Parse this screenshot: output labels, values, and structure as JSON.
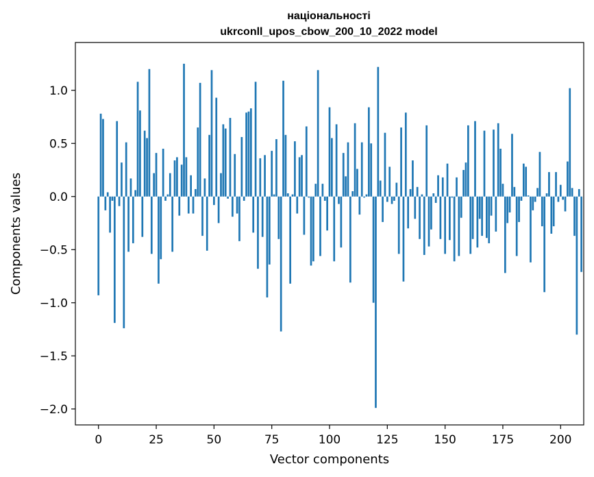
{
  "chart_data": {
    "type": "bar",
    "title": "національності",
    "subtitle": "ukrconll_upos_cbow_200_10_2022 model",
    "xlabel": "Vector components",
    "ylabel": "Components values",
    "xlim": [
      -10,
      210
    ],
    "ylim": [
      -2.15,
      1.45
    ],
    "xticks": [
      0,
      25,
      50,
      75,
      100,
      125,
      150,
      175,
      200
    ],
    "yticks": [
      -2.0,
      -1.5,
      -1.0,
      -0.5,
      0.0,
      0.5,
      1.0
    ],
    "ytick_labels": [
      "−2.0",
      "−1.5",
      "−1.0",
      "−0.5",
      "0.0",
      "0.5",
      "1.0"
    ],
    "grid": false,
    "bar_color": "#1f77b4",
    "values": [
      -0.93,
      0.78,
      0.73,
      -0.13,
      0.04,
      -0.34,
      -0.04,
      -1.19,
      0.71,
      -0.09,
      0.32,
      -1.24,
      0.51,
      -0.52,
      0.17,
      -0.44,
      0.06,
      1.08,
      0.81,
      -0.38,
      0.62,
      0.55,
      1.2,
      -0.54,
      0.22,
      0.41,
      -0.82,
      -0.59,
      0.45,
      -0.04,
      0.02,
      0.22,
      -0.52,
      0.34,
      0.37,
      -0.18,
      0.3,
      1.25,
      0.37,
      -0.16,
      0.2,
      -0.16,
      0.07,
      0.65,
      1.07,
      -0.37,
      0.17,
      -0.51,
      0.58,
      1.19,
      -0.08,
      0.93,
      -0.25,
      0.22,
      0.68,
      0.64,
      -0.02,
      0.74,
      -0.19,
      0.4,
      -0.16,
      -0.42,
      0.56,
      -0.04,
      0.79,
      0.8,
      0.83,
      -0.34,
      1.08,
      -0.68,
      0.36,
      -0.38,
      0.39,
      -0.95,
      -0.64,
      0.43,
      0.02,
      0.54,
      -0.4,
      -1.27,
      1.09,
      0.58,
      0.03,
      -0.82,
      0.02,
      0.52,
      -0.16,
      0.37,
      0.39,
      -0.36,
      0.66,
      -0.01,
      -0.65,
      -0.61,
      0.12,
      1.19,
      -0.56,
      0.12,
      -0.04,
      -0.32,
      0.84,
      0.55,
      -0.61,
      0.68,
      -0.07,
      -0.48,
      0.41,
      0.19,
      0.51,
      -0.81,
      0.05,
      0.69,
      0.26,
      -0.17,
      0.51,
      -0.01,
      0.02,
      0.84,
      0.5,
      -1.0,
      -1.99,
      1.22,
      0.15,
      -0.24,
      0.6,
      -0.05,
      0.28,
      -0.07,
      -0.04,
      0.13,
      -0.54,
      0.65,
      -0.8,
      0.79,
      -0.3,
      0.07,
      0.34,
      -0.21,
      0.09,
      -0.4,
      0.02,
      -0.55,
      0.67,
      -0.47,
      -0.31,
      0.03,
      -0.06,
      0.2,
      -0.4,
      0.18,
      -0.54,
      0.31,
      -0.41,
      -0.01,
      -0.61,
      0.18,
      -0.56,
      -0.2,
      0.25,
      0.32,
      0.67,
      -0.54,
      -0.4,
      0.71,
      -0.48,
      -0.21,
      -0.37,
      0.62,
      -0.39,
      -0.44,
      -0.18,
      0.63,
      -0.33,
      0.69,
      0.45,
      0.12,
      -0.72,
      -0.25,
      -0.15,
      0.59,
      0.09,
      -0.56,
      -0.24,
      -0.04,
      0.31,
      0.28,
      0.01,
      -0.62,
      -0.13,
      -0.05,
      0.08,
      0.42,
      -0.28,
      -0.9,
      0.03,
      0.23,
      -0.35,
      -0.28,
      0.23,
      -0.05,
      0.11,
      -0.03,
      -0.14,
      0.33,
      1.02,
      0.08,
      -0.37,
      -1.3,
      0.07,
      -0.71
    ]
  }
}
